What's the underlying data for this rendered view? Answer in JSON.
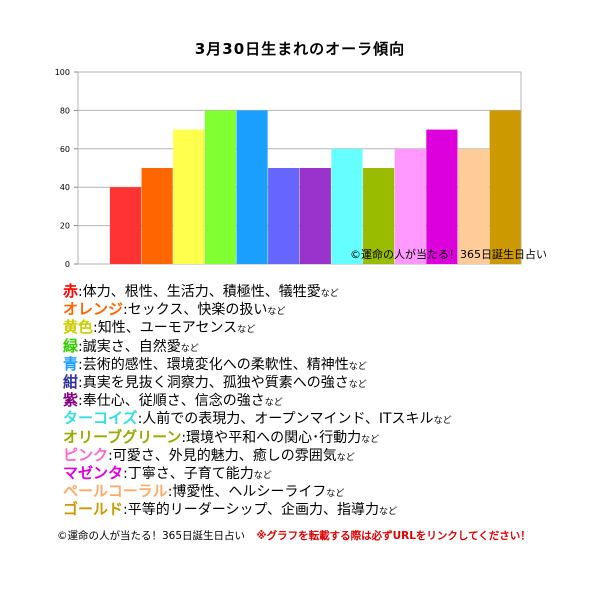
{
  "chart_data": {
    "type": "bar",
    "title": "3月30日生まれのオーラ傾向",
    "categories": [
      "",
      "赤",
      "オレンジ",
      "黄色",
      "緑",
      "青",
      "紺",
      "紫",
      "ターコイズ",
      "オリーブグリーン",
      "ピンク",
      "マゼンタ",
      "ペールコーラル",
      "ゴールド"
    ],
    "values": [
      0,
      40,
      50,
      70,
      80,
      80,
      50,
      50,
      60,
      50,
      60,
      70,
      60,
      80
    ],
    "colors": [
      "#ffffff",
      "#ff3333",
      "#ff6600",
      "#ffff4d",
      "#80ff33",
      "#1a9fff",
      "#6666ff",
      "#9933cc",
      "#66ffff",
      "#99bb00",
      "#ff99ff",
      "#dd00dd",
      "#ffcc99",
      "#cc9900"
    ],
    "ylim": [
      0,
      100
    ],
    "yticks": [
      "0",
      "20",
      "40",
      "60",
      "80",
      "100"
    ],
    "grid": true,
    "xlabel": "",
    "ylabel": "",
    "watermark": "©運命の人が当たる！365日誕生日占い"
  },
  "legend": [
    {
      "name": "赤",
      "color": "#ff0000",
      "desc": "体力、根性、生活力、積極性、犠牲愛"
    },
    {
      "name": "オレンジ",
      "color": "#ff6600",
      "desc": "セックス、快楽の扱い"
    },
    {
      "name": "黄色",
      "color": "#cccc00",
      "desc": "知性、ユーモアセンス"
    },
    {
      "name": "緑",
      "color": "#33cc00",
      "desc": "誠実さ、自然愛"
    },
    {
      "name": "青",
      "color": "#1a9fff",
      "desc": "芸術的感性、環境変化への柔軟性、精神性"
    },
    {
      "name": "紺",
      "color": "#333399",
      "desc": "真実を見抜く洞察力、孤独や質素への強さ"
    },
    {
      "name": "紫",
      "color": "#800080",
      "desc": "奉仕心、従順さ、信念の強さ"
    },
    {
      "name": "ターコイズ",
      "color": "#33dddd",
      "desc": "人前での表現力、オープンマインド、ITスキル"
    },
    {
      "name": "オリーブグリーン",
      "color": "#99aa00",
      "desc": "環境や平和への関心･行動力"
    },
    {
      "name": "ピンク",
      "color": "#ff66cc",
      "desc": "可愛さ、外見的魅力、癒しの雰囲気"
    },
    {
      "name": "マゼンタ",
      "color": "#dd00dd",
      "desc": "丁寧さ、子育て能力"
    },
    {
      "name": "ペールコーラル",
      "color": "#ffaa66",
      "desc": "博愛性、ヘルシーライフ"
    },
    {
      "name": "ゴールド",
      "color": "#cc9900",
      "desc": "平等的リーダーシップ、企画力、指導力"
    }
  ],
  "legend_sep": ":",
  "legend_suffix": "など",
  "footer": {
    "credit": "©運命の人が当たる！365日誕生日占い",
    "note": "※グラフを転載する際は必ずURLをリンクしてください！"
  }
}
